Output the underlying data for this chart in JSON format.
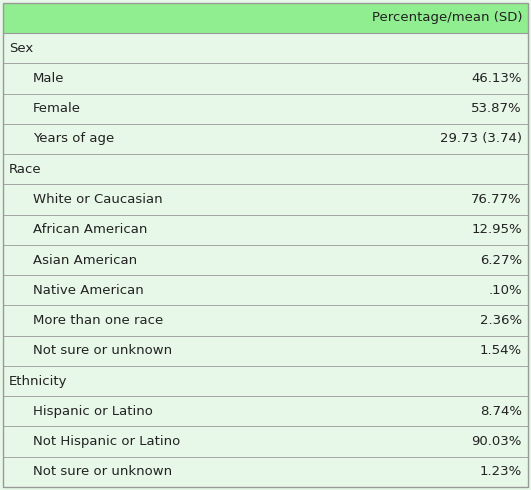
{
  "header": "Percentage/mean (SD)",
  "header_bg": "#90ee90",
  "row_bg_light": "#e8f8e8",
  "border_color": "#999999",
  "rows": [
    {
      "label": "Sex",
      "value": "",
      "is_section": true
    },
    {
      "label": "Male",
      "value": "46.13%",
      "is_section": false
    },
    {
      "label": "Female",
      "value": "53.87%",
      "is_section": false
    },
    {
      "label": "Years of age",
      "value": "29.73 (3.74)",
      "is_section": false
    },
    {
      "label": "Race",
      "value": "",
      "is_section": true
    },
    {
      "label": "White or Caucasian",
      "value": "76.77%",
      "is_section": false
    },
    {
      "label": "African American",
      "value": "12.95%",
      "is_section": false
    },
    {
      "label": "Asian American",
      "value": "6.27%",
      "is_section": false
    },
    {
      "label": "Native American",
      "value": ".10%",
      "is_section": false
    },
    {
      "label": "More than one race",
      "value": "2.36%",
      "is_section": false
    },
    {
      "label": "Not sure or unknown",
      "value": "1.54%",
      "is_section": false
    },
    {
      "label": "Ethnicity",
      "value": "",
      "is_section": true
    },
    {
      "label": "Hispanic or Latino",
      "value": "8.74%",
      "is_section": false
    },
    {
      "label": "Not Hispanic or Latino",
      "value": "90.03%",
      "is_section": false
    },
    {
      "label": "Not sure or unknown",
      "value": "1.23%",
      "is_section": false
    }
  ],
  "text_color": "#222222",
  "font_size": 9.5,
  "header_font_size": 9.5,
  "fig_width": 5.31,
  "fig_height": 4.9,
  "dpi": 100
}
